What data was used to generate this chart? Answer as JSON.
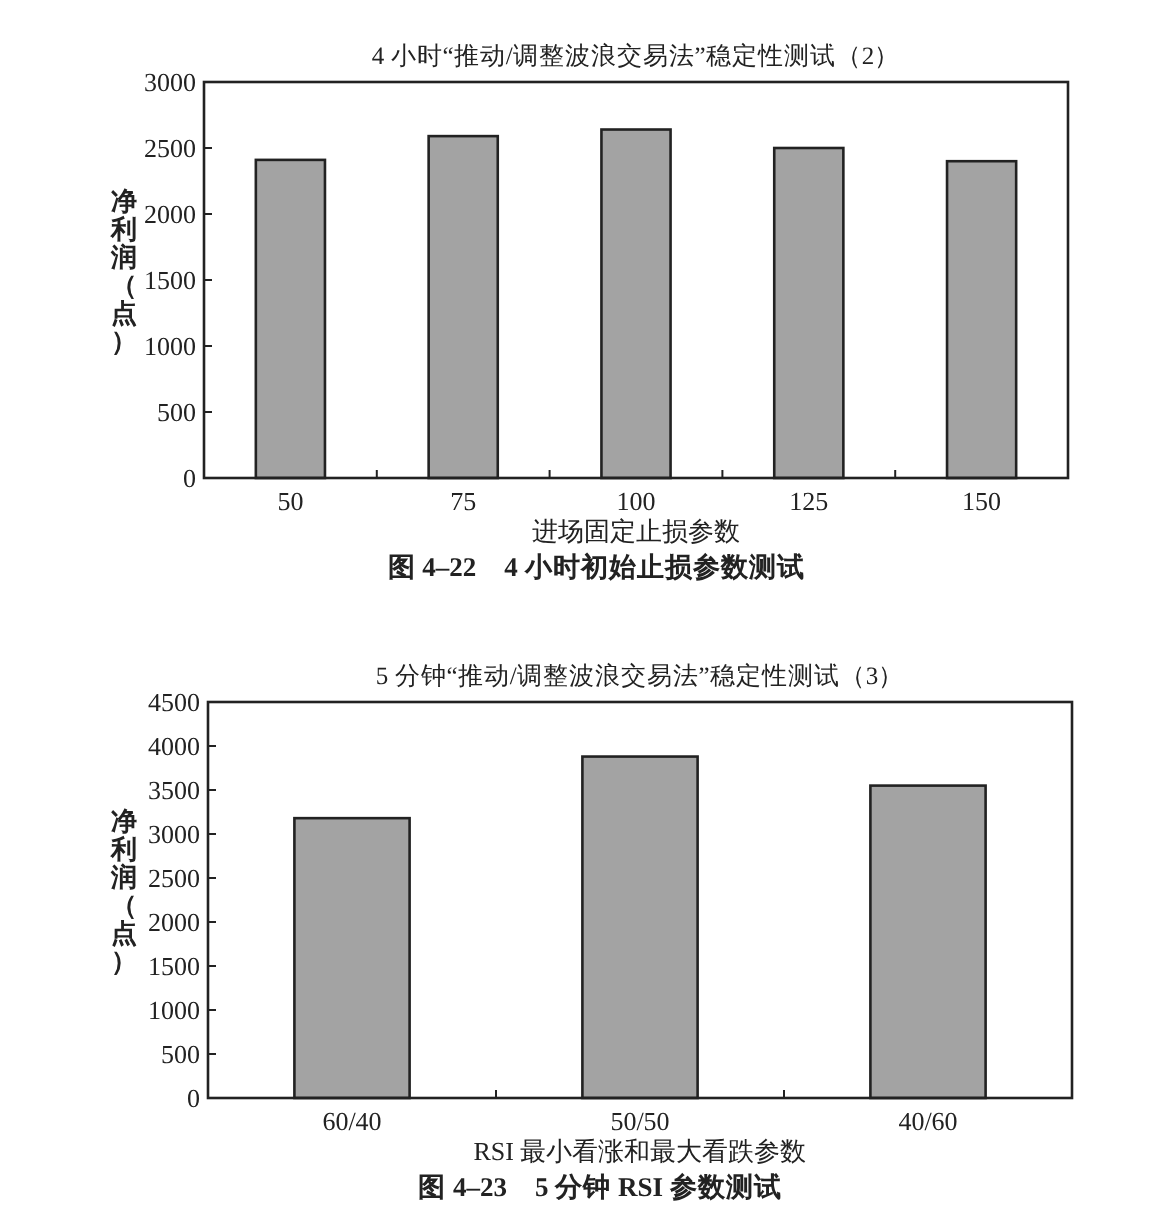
{
  "chart_data": [
    {
      "type": "bar",
      "title": "4 小时“推动/调整波浪交易法”稳定性测试（2）",
      "xlabel": "进场固定止损参数",
      "ylabel": "净利润（点）",
      "annotations": [
        "图 4–22　4 小时初始止损参数测试"
      ],
      "categories": [
        "50",
        "75",
        "100",
        "125",
        "150"
      ],
      "values": [
        2410,
        2590,
        2640,
        2500,
        2400
      ],
      "color": "#a3a3a3",
      "ylim": [
        0,
        3000
      ],
      "yticks": [
        0,
        500,
        1000,
        1500,
        2000,
        2500,
        3000
      ]
    },
    {
      "type": "bar",
      "title": "5 分钟“推动/调整波浪交易法”稳定性测试（3）",
      "xlabel": "RSI 最小看涨和最大看跌参数",
      "ylabel": "净利润（点）",
      "annotations": [
        "图 4–23　5 分钟 RSI 参数测试"
      ],
      "categories": [
        "60/40",
        "50/50",
        "40/60"
      ],
      "values": [
        3180,
        3880,
        3550
      ],
      "color": "#a3a3a3",
      "ylim": [
        0,
        4500
      ],
      "yticks": [
        0,
        500,
        1000,
        1500,
        2000,
        2500,
        3000,
        3500,
        4000,
        4500
      ]
    }
  ]
}
